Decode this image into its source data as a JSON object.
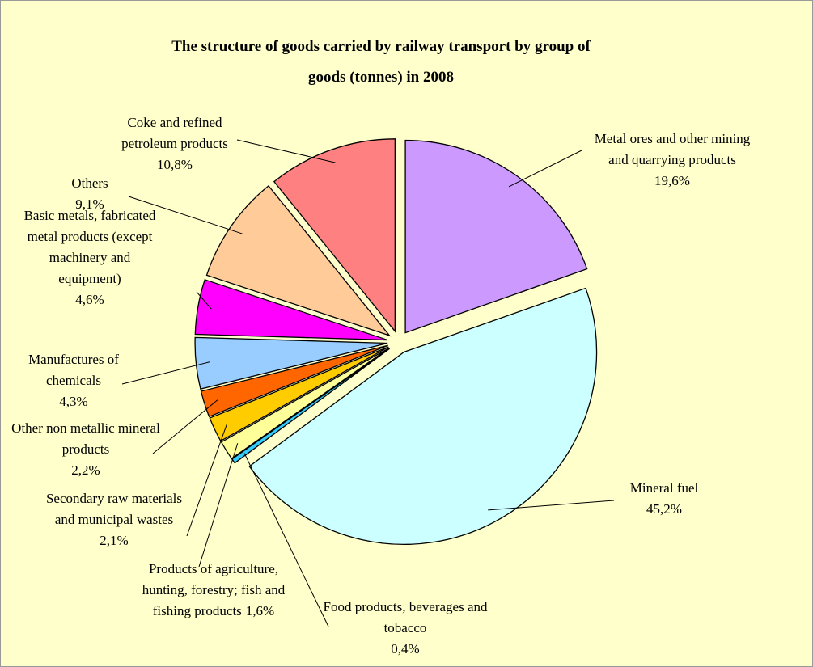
{
  "chart_data": {
    "type": "pie",
    "title": "The structure of goods carried by railway transport by group of goods (tonnes) in 2008",
    "categories": [
      "Metal ores and other mining and quarrying products",
      "Mineral fuel",
      "Food products, beverages and tobacco",
      "Products of agriculture, hunting, forestry; fish and fishing products",
      "Secondary raw materials and municipal wastes",
      "Other non metallic mineral products",
      "Manufactures of chemicals",
      "Basic metals, fabricated metal products (except machinery and equipment)",
      "Others",
      "Coke and refined petroleum products"
    ],
    "values": [
      19.6,
      45.2,
      0.4,
      1.6,
      2.1,
      2.2,
      4.3,
      4.6,
      9.1,
      10.8
    ],
    "value_labels": [
      "19,6%",
      "45,2%",
      "0,4%",
      "1,6%",
      "2,1%",
      "2,2%",
      "4,3%",
      "4,6%",
      "9,1%",
      "10,8%"
    ],
    "colors": [
      "#cc99ff",
      "#ccffff",
      "#33ccff",
      "#ffff99",
      "#ffcc00",
      "#ff6600",
      "#99ccff",
      "#ff00ff",
      "#ffcc99",
      "#ff8080"
    ]
  }
}
